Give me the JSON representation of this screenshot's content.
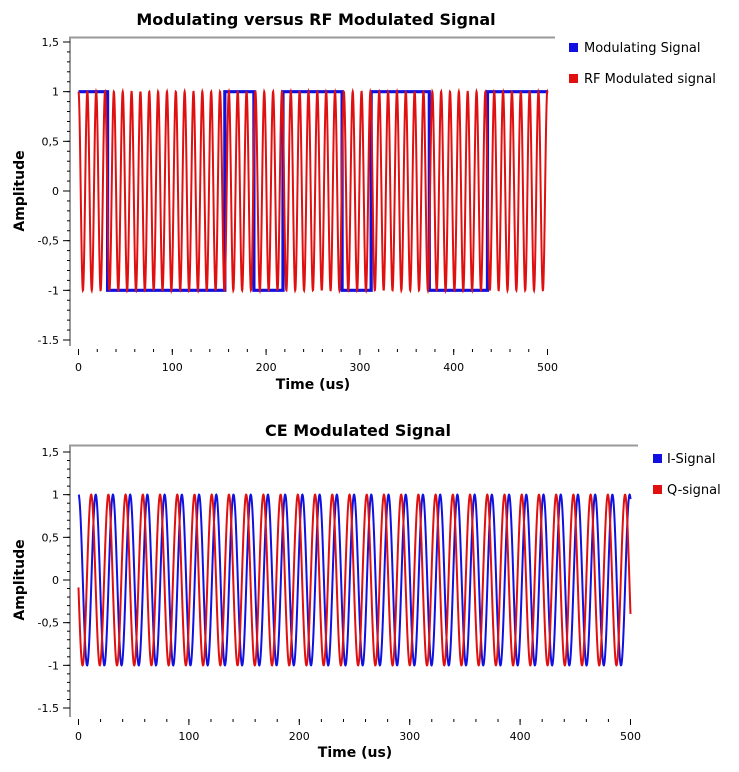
{
  "colors": {
    "modulating": "#1010e0",
    "rf": "#e01010",
    "i_signal": "#1010e0",
    "q_signal": "#e01010",
    "frame": "#999999",
    "axis": "#000000"
  },
  "chart_data": [
    {
      "type": "line",
      "title": "Modulating versus RF Modulated Signal",
      "xlabel": "Time (us)",
      "ylabel": "Amplitude",
      "xlim": [
        0,
        500
      ],
      "ylim": [
        -1.5,
        1.5
      ],
      "x_ticks": [
        "0",
        "100",
        "200",
        "300",
        "400",
        "500"
      ],
      "y_ticks": [
        "1,5",
        "1",
        "0,5",
        "0",
        "-0,5",
        "-1",
        "-1.5"
      ],
      "grid": false,
      "legend_position": "right",
      "series": [
        {
          "name": "Modulating Signal",
          "color_key": "modulating",
          "kind": "step",
          "x_range": [
            0,
            500
          ],
          "levels": [
            {
              "from": 0,
              "to": 31,
              "value": 1
            },
            {
              "from": 31,
              "to": 156,
              "value": -1
            },
            {
              "from": 156,
              "to": 187,
              "value": 1
            },
            {
              "from": 187,
              "to": 218,
              "value": -1
            },
            {
              "from": 218,
              "to": 281,
              "value": 1
            },
            {
              "from": 281,
              "to": 312,
              "value": -1
            },
            {
              "from": 312,
              "to": 374,
              "value": 1
            },
            {
              "from": 374,
              "to": 436,
              "value": -1
            },
            {
              "from": 436,
              "to": 500,
              "value": 1
            }
          ]
        },
        {
          "name": "RF Modulated signal",
          "color_key": "rf",
          "kind": "cosine",
          "amplitude": 1,
          "period": 9.43,
          "phase_deg": 0,
          "x_range": [
            0,
            500
          ]
        }
      ]
    },
    {
      "type": "line",
      "title": "CE Modulated Signal",
      "xlabel": "Time (us)",
      "ylabel": "Amplitude",
      "xlim": [
        0,
        500
      ],
      "ylim": [
        -1.5,
        1.5
      ],
      "x_ticks": [
        "0",
        "100",
        "200",
        "300",
        "400",
        "500"
      ],
      "y_ticks": [
        "1,5",
        "1",
        "0,5",
        "0",
        "-0,5",
        "-1",
        "-1.5"
      ],
      "grid": false,
      "legend_position": "right",
      "series": [
        {
          "name": "I-Signal",
          "color_key": "i_signal",
          "kind": "cosine",
          "amplitude": 1,
          "period": 15.6,
          "phase_deg": 0,
          "x_range": [
            0,
            500
          ]
        },
        {
          "name": "Q-signal",
          "color_key": "q_signal",
          "kind": "cosine",
          "amplitude": 1,
          "period": 15.6,
          "phase_deg": 95,
          "x_range": [
            0,
            500
          ]
        }
      ]
    }
  ]
}
